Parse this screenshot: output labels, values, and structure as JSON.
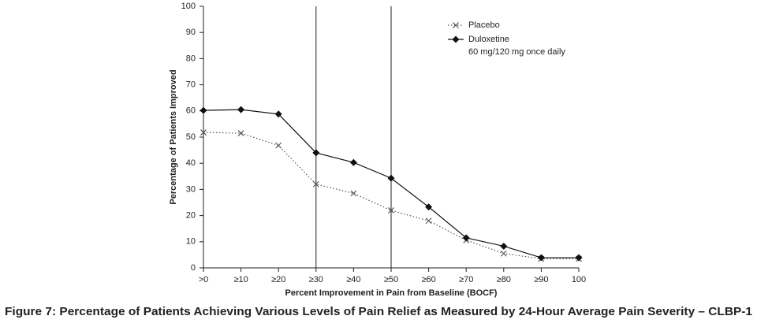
{
  "chart_data": {
    "type": "line",
    "caption": "Figure 7: Percentage of Patients Achieving Various Levels of Pain Relief as Measured by 24-Hour Average Pain Severity – CLBP-1",
    "x_label": "Percent Improvement in Pain from Baseline (BOCF)",
    "y_label": "Percentage of Patients Improved",
    "categories": [
      ">0",
      "≥10",
      "≥20",
      "≥30",
      "≥40",
      "≥50",
      "≥60",
      "≥70",
      "≥80",
      "≥90",
      "100"
    ],
    "series": [
      {
        "name": "Placebo",
        "color": "#555555",
        "line": "dotted",
        "marker": "x",
        "values": [
          51.8,
          51.5,
          46.8,
          32,
          28.5,
          22,
          18,
          10.6,
          5.5,
          3.5,
          3.5
        ]
      },
      {
        "name": "Duloxetine",
        "dose": "60 mg/120 mg once daily",
        "color": "#111111",
        "line": "solid",
        "marker": "diamond",
        "values": [
          60.2,
          60.5,
          58.8,
          44,
          40.3,
          34.3,
          23.3,
          11.5,
          8.3,
          3.9,
          3.9
        ]
      }
    ],
    "reference_lines": [
      "≥30",
      "≥50"
    ],
    "ylim": [
      0,
      100
    ],
    "yticks": [
      0,
      10,
      20,
      30,
      40,
      50,
      60,
      70,
      80,
      90,
      100
    ]
  }
}
